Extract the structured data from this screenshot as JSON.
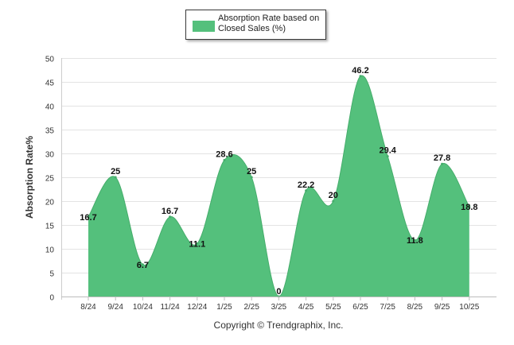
{
  "legend": {
    "label": "Absorption Rate based on Closed Sales (%)"
  },
  "copyright": "Copyright © Trendgraphix, Inc.",
  "chart_data": {
    "type": "area",
    "ylabel": "Absorption Rate%",
    "ylim": [
      0,
      50
    ],
    "yticks": [
      0,
      5,
      10,
      15,
      20,
      25,
      30,
      35,
      40,
      45,
      50
    ],
    "categories": [
      "8/24",
      "9/24",
      "10/24",
      "11/24",
      "12/24",
      "1/25",
      "2/25",
      "3/25",
      "4/25",
      "5/25",
      "6/25",
      "7/25",
      "8/25",
      "9/25",
      "10/25"
    ],
    "series": [
      {
        "name": "Absorption Rate based on Closed Sales (%)",
        "values": [
          16.7,
          25,
          6.7,
          16.7,
          11.1,
          28.6,
          25,
          0,
          22.2,
          20,
          46.2,
          29.4,
          11.8,
          27.8,
          18.8
        ],
        "color": "#54c07c"
      }
    ],
    "data_labels": [
      "16.7",
      "25",
      "6.7",
      "16.7",
      "11.1",
      "28.6",
      "25",
      "0",
      "22.2",
      "20",
      "46.2",
      "29.4",
      "11.8",
      "27.8",
      "18.8"
    ],
    "grid": true,
    "legend_position": "top"
  }
}
